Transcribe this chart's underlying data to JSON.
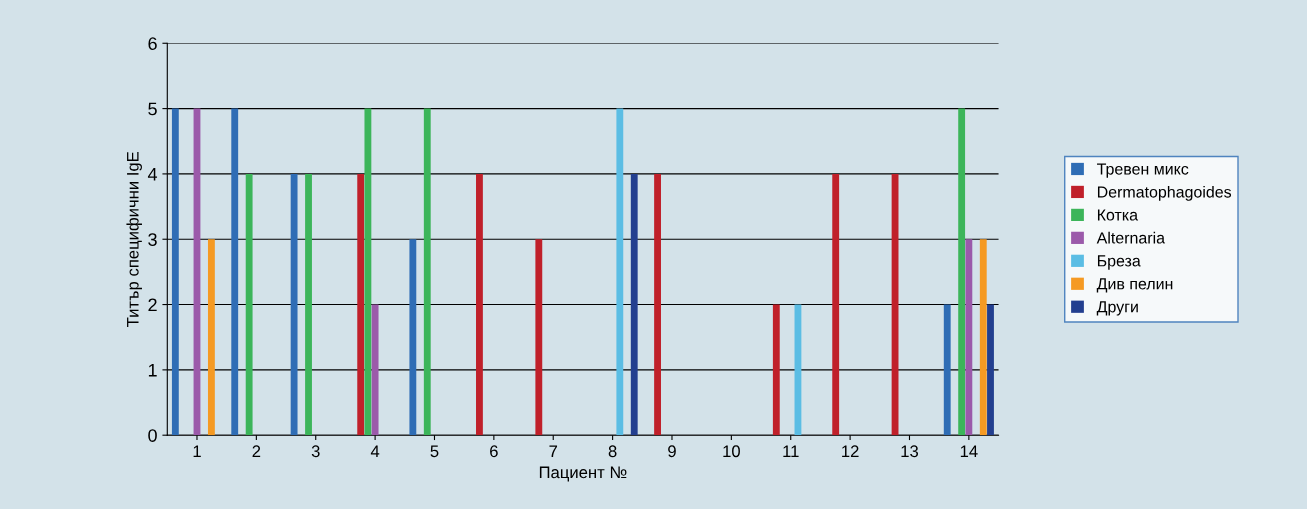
{
  "chart_data": {
    "type": "bar",
    "xlabel": "Пациент №",
    "ylabel": "Титър специфични IgE",
    "categories": [
      "1",
      "2",
      "3",
      "4",
      "5",
      "6",
      "7",
      "8",
      "9",
      "10",
      "11",
      "12",
      "13",
      "14"
    ],
    "series": [
      {
        "name": "Тревен микс",
        "color": "#2f6db5",
        "values": [
          5,
          5,
          4,
          null,
          3,
          null,
          null,
          null,
          null,
          null,
          null,
          null,
          null,
          2
        ]
      },
      {
        "name": "Dermatophagoides",
        "color": "#c0202a",
        "values": [
          null,
          null,
          null,
          4,
          null,
          4,
          3,
          null,
          4,
          null,
          2,
          4,
          4,
          null
        ]
      },
      {
        "name": "Котка",
        "color": "#3cb55a",
        "values": [
          null,
          4,
          4,
          5,
          5,
          null,
          null,
          null,
          null,
          null,
          null,
          null,
          null,
          5
        ]
      },
      {
        "name": "Alternaria",
        "color": "#9b5aaa",
        "values": [
          5,
          null,
          null,
          2,
          null,
          null,
          null,
          null,
          null,
          null,
          null,
          null,
          null,
          3
        ]
      },
      {
        "name": "Бреза",
        "color": "#5bbde4",
        "values": [
          null,
          null,
          null,
          null,
          null,
          null,
          null,
          5,
          null,
          null,
          2,
          null,
          null,
          null
        ]
      },
      {
        "name": "Див пелин",
        "color": "#f59a23",
        "values": [
          3,
          null,
          null,
          null,
          null,
          null,
          null,
          null,
          null,
          null,
          null,
          null,
          null,
          3
        ]
      },
      {
        "name": "Други",
        "color": "#233f8f",
        "values": [
          null,
          null,
          null,
          null,
          null,
          null,
          null,
          4,
          null,
          null,
          null,
          null,
          null,
          2
        ]
      }
    ],
    "ylim": [
      0,
      6
    ],
    "yticks": [
      0,
      1,
      2,
      3,
      4,
      5,
      6
    ],
    "grid": "y",
    "legend": "right"
  }
}
